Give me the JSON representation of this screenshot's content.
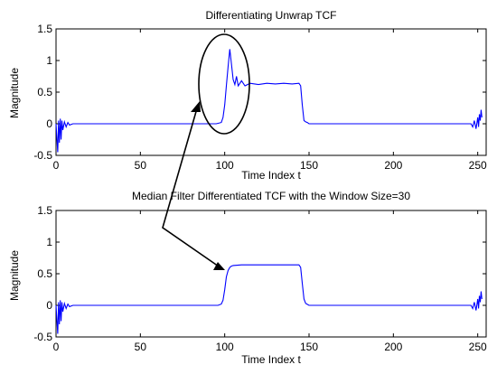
{
  "chart_data": [
    {
      "type": "line",
      "title": "Differentiating Unwrap TCF",
      "xlabel": "Time Index t",
      "ylabel": "Magnitude",
      "xlim": [
        0,
        255
      ],
      "ylim": [
        -0.5,
        1.5
      ],
      "xticks": [
        0,
        50,
        100,
        150,
        200,
        250
      ],
      "yticks": [
        -0.5,
        0,
        0.5,
        1,
        1.5
      ],
      "grid": false,
      "series": [
        {
          "color": "#0000ff",
          "x": [
            0,
            1,
            1.5,
            2,
            2.5,
            3,
            3.5,
            4,
            5,
            6,
            7,
            8,
            10,
            20,
            50,
            90,
            95,
            98,
            99,
            100,
            101,
            102,
            103,
            104,
            105,
            106,
            107,
            108,
            110,
            112,
            115,
            120,
            125,
            130,
            135,
            140,
            144,
            145,
            146,
            147,
            148,
            149,
            150,
            152,
            160,
            200,
            240,
            246,
            247,
            248,
            249,
            250,
            250.5,
            251,
            251.5,
            252,
            252.5
          ],
          "y": [
            0,
            -0.45,
            0.05,
            -0.3,
            0.08,
            -0.25,
            0.05,
            -0.1,
            0.03,
            -0.05,
            0.02,
            -0.02,
            0,
            0,
            0,
            0,
            0,
            0.02,
            0.1,
            0.3,
            0.6,
            0.9,
            1.18,
            0.95,
            0.7,
            0.62,
            0.75,
            0.6,
            0.68,
            0.6,
            0.64,
            0.62,
            0.64,
            0.63,
            0.64,
            0.63,
            0.64,
            0.6,
            0.3,
            0.05,
            0.03,
            0.02,
            0,
            0,
            0,
            0,
            0,
            0,
            -0.05,
            0.05,
            -0.08,
            0.1,
            -0.05,
            0.15,
            0.05,
            0.22,
            0.1
          ]
        }
      ]
    },
    {
      "type": "line",
      "title": "Median Filter Differentiated TCF with the Window Size=30",
      "xlabel": "Time Index t",
      "ylabel": "Magnitude",
      "xlim": [
        0,
        255
      ],
      "ylim": [
        -0.5,
        1.5
      ],
      "xticks": [
        0,
        50,
        100,
        150,
        200,
        250
      ],
      "yticks": [
        -0.5,
        0,
        0.5,
        1,
        1.5
      ],
      "grid": false,
      "series": [
        {
          "color": "#0000ff",
          "x": [
            0,
            1,
            1.5,
            2,
            2.5,
            3,
            3.5,
            4,
            5,
            6,
            7,
            8,
            10,
            20,
            50,
            90,
            96,
            98,
            99,
            100,
            101,
            102,
            103,
            104,
            105,
            110,
            120,
            130,
            140,
            144,
            145,
            146,
            147,
            148,
            150,
            152,
            160,
            200,
            240,
            246,
            247,
            248,
            249,
            250,
            250.5,
            251,
            251.5,
            252,
            252.5
          ],
          "y": [
            0,
            -0.45,
            0.05,
            -0.3,
            0.08,
            -0.25,
            0.05,
            -0.1,
            0.03,
            -0.05,
            0.02,
            -0.02,
            0,
            0,
            0,
            0,
            0,
            0.02,
            0.08,
            0.25,
            0.45,
            0.55,
            0.6,
            0.62,
            0.63,
            0.64,
            0.64,
            0.64,
            0.64,
            0.64,
            0.6,
            0.35,
            0.1,
            0.03,
            0,
            0,
            0,
            0,
            0,
            0,
            -0.05,
            0.05,
            -0.08,
            0.1,
            -0.05,
            0.15,
            0.05,
            0.22,
            0.1
          ]
        }
      ]
    }
  ]
}
